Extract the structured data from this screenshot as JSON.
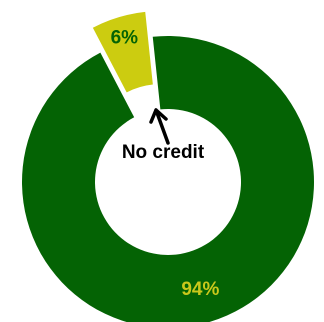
{
  "chart_data": {
    "type": "pie",
    "donut": true,
    "title": "",
    "slices": [
      {
        "value": 94,
        "label": "94%",
        "color": "#046304",
        "label_color": "#c9c81b"
      },
      {
        "value": 6,
        "label": "6%",
        "color": "#cccc10",
        "label_color": "#046304",
        "exploded": true
      }
    ],
    "annotation": {
      "text": "No credit",
      "points_to": "6%"
    },
    "legend": "none"
  }
}
